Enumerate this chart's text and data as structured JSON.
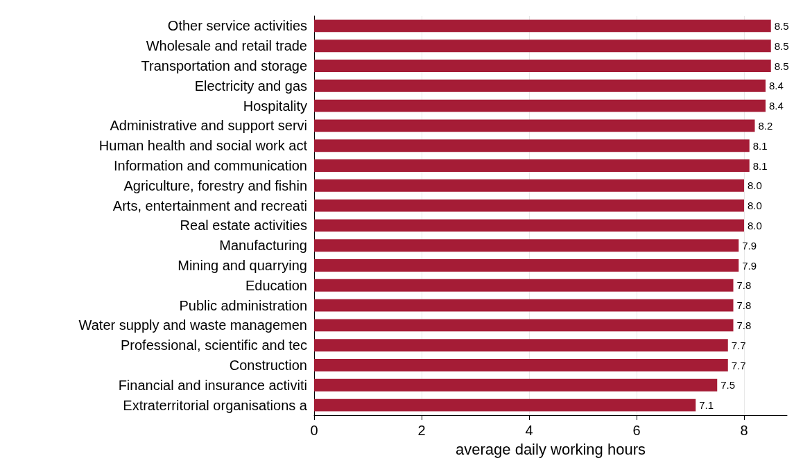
{
  "chart_data": {
    "type": "bar",
    "orientation": "horizontal",
    "xlabel": "average daily working hours",
    "categories": [
      "Other service activities",
      "Wholesale and retail trade",
      "Transportation and storage",
      "Electricity and gas",
      "Hospitality",
      "Administrative and support servi",
      "Human health and social work act",
      "Information and communication",
      "Agriculture, forestry and fishin",
      "Arts, entertainment and recreati",
      "Real estate activities",
      "Manufacturing",
      "Mining and quarrying",
      "Education",
      "Public administration",
      "Water supply and waste managemen",
      "Professional, scientific and tec",
      "Construction",
      "Financial and insurance activiti",
      "Extraterritorial organisations a"
    ],
    "values": [
      8.5,
      8.5,
      8.5,
      8.4,
      8.4,
      8.2,
      8.1,
      8.1,
      8.0,
      8.0,
      8.0,
      7.9,
      7.9,
      7.8,
      7.8,
      7.8,
      7.7,
      7.7,
      7.5,
      7.1
    ],
    "value_labels": [
      "8.5",
      "8.5",
      "8.5",
      "8.4",
      "8.4",
      "8.2",
      "8.1",
      "8.1",
      "8.0",
      "8.0",
      "8.0",
      "7.9",
      "7.9",
      "7.8",
      "7.8",
      "7.8",
      "7.7",
      "7.7",
      "7.5",
      "7.1"
    ],
    "color": "#a51c36",
    "xlim": [
      0,
      8.8
    ],
    "xticks": [
      0,
      2,
      4,
      6,
      8
    ],
    "grid": "x"
  }
}
